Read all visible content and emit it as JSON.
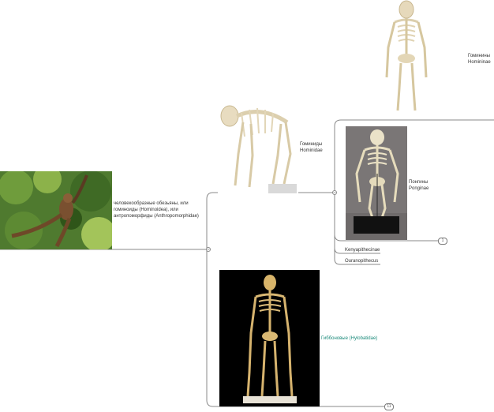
{
  "root": {
    "label_line1": "человекообразные обезьяны, или",
    "label_line2": "гоминоиды (Hominoidea), или",
    "label_line3": "антропоморфиды (Anthropomorphidae)"
  },
  "hominidae": {
    "label_ru": "Гоминиды",
    "label_lat": "Hominidae"
  },
  "homininae": {
    "label_ru": "Гоминины",
    "label_lat": "Homininae"
  },
  "ponginae": {
    "label_ru": "Понгины",
    "label_lat": "Ponginae"
  },
  "kenyapithecinae": {
    "label": "Kenyapithecinae"
  },
  "ouranopithecus": {
    "label": "Ouranopithecus"
  },
  "gibbons": {
    "label": "Гиббоновые (Hylobatidae)"
  },
  "badges": {
    "ponginae_collapsed": "1",
    "gibbons_collapsed": "11"
  },
  "colors": {
    "connector": "#8a8a8a",
    "gibbon_text": "#1a8a7a",
    "badge_border": "#7a7a7a"
  }
}
